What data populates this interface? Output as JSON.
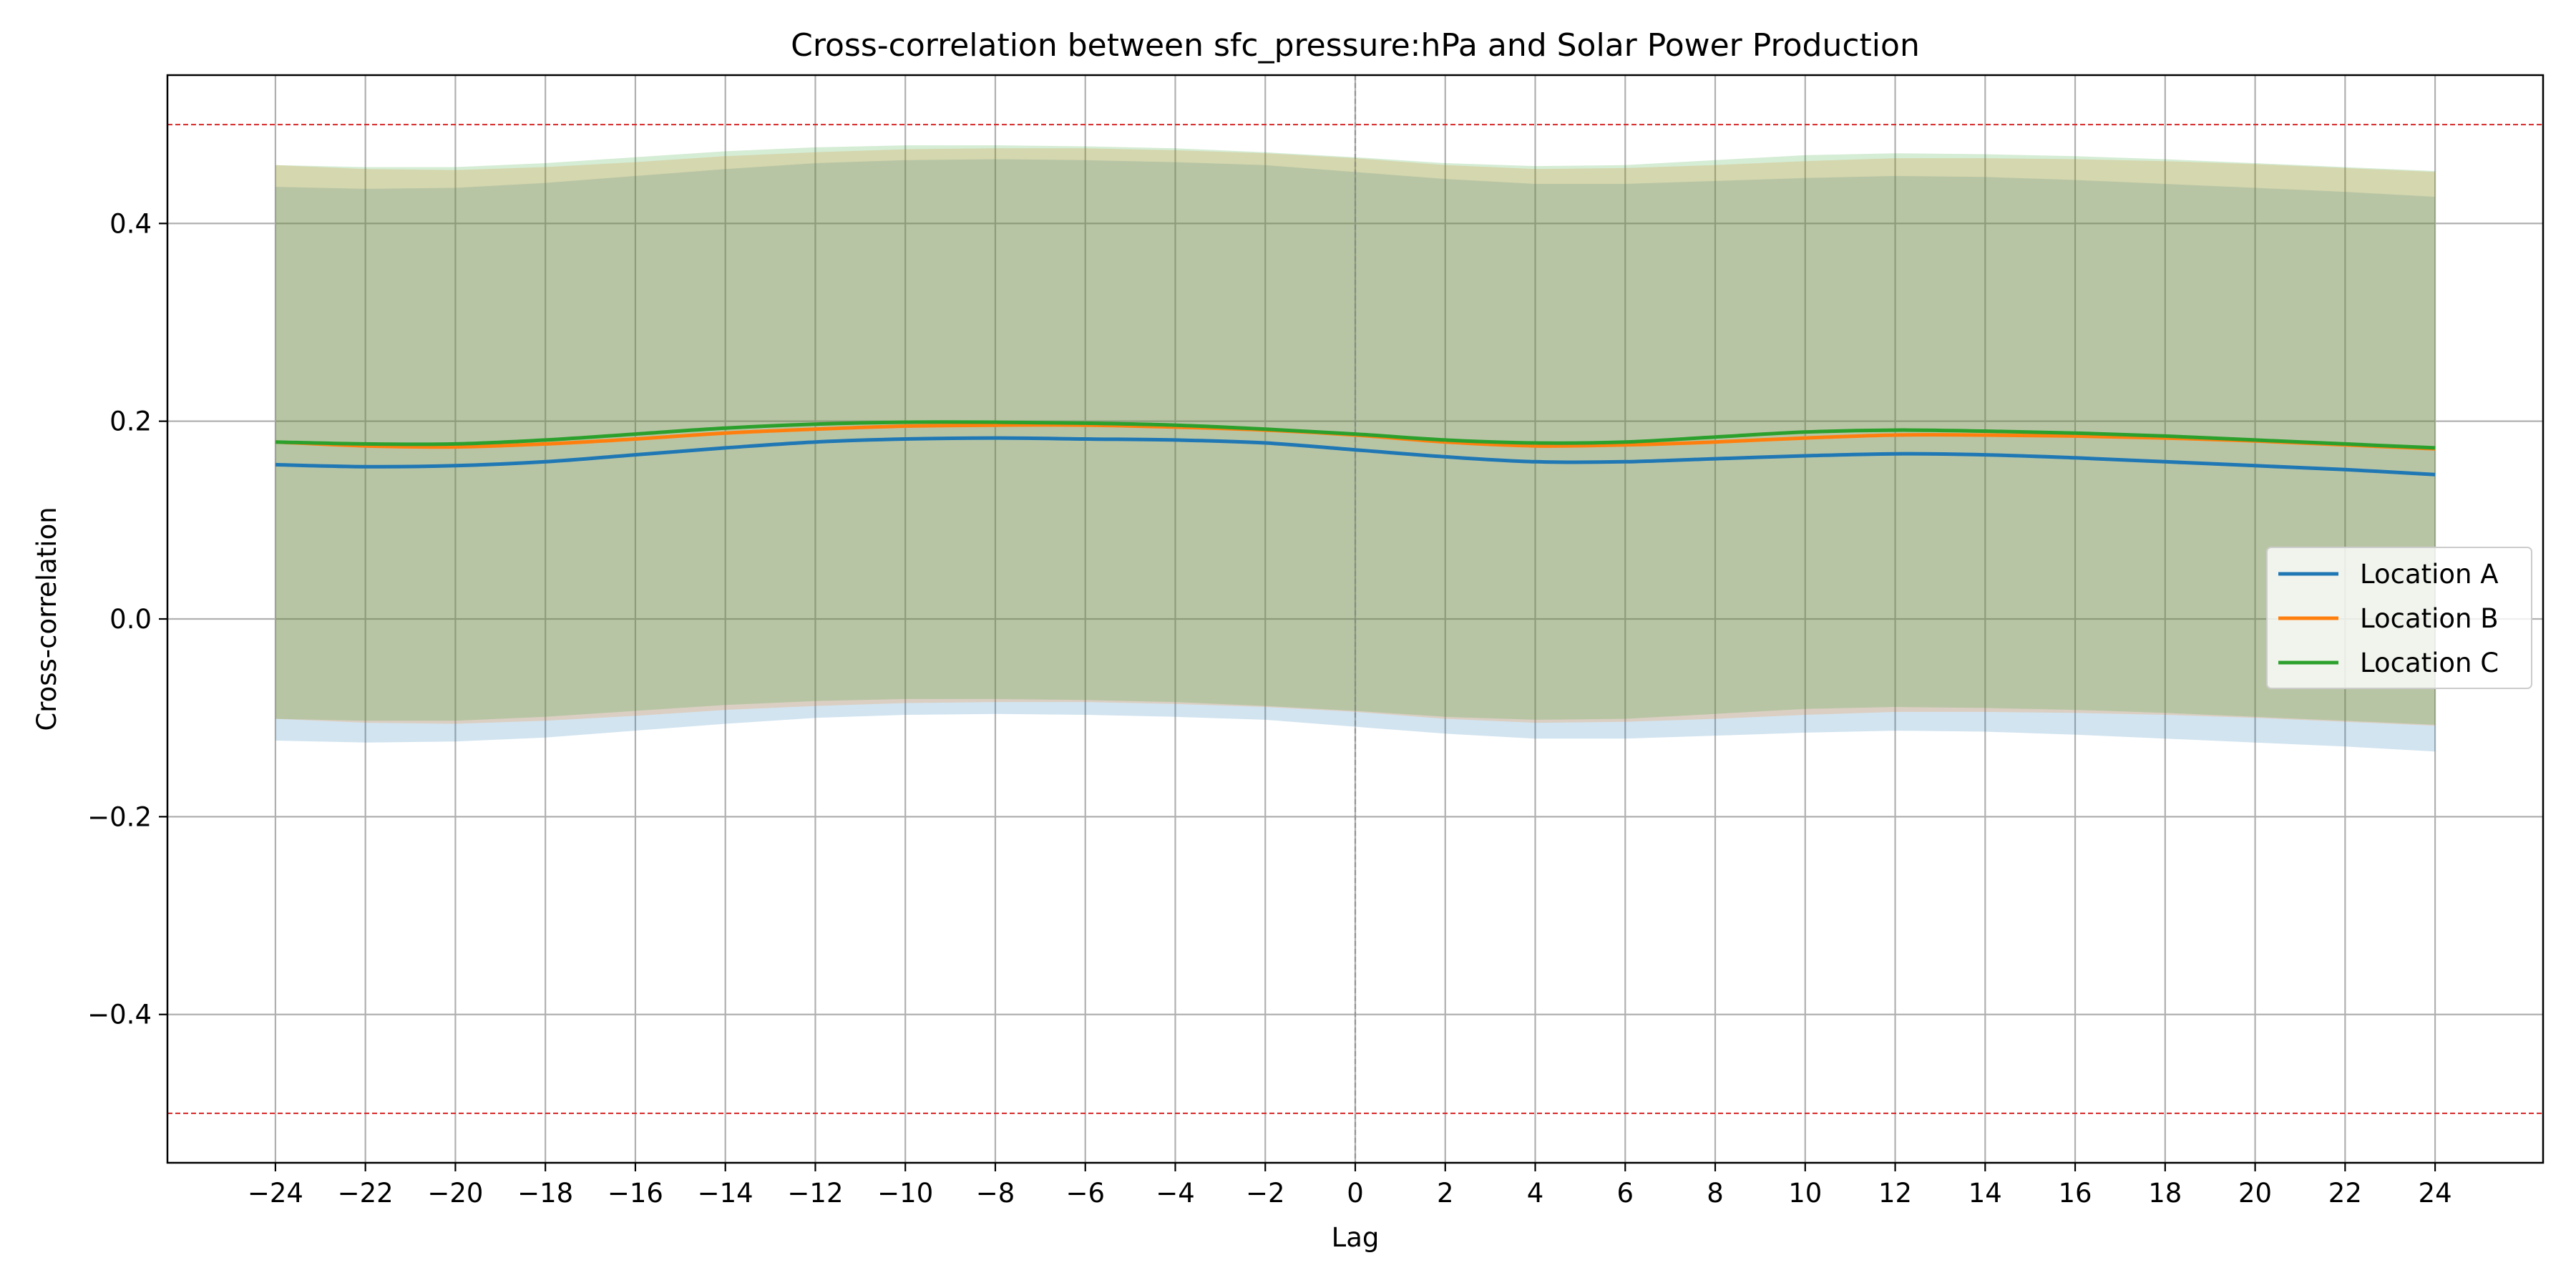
{
  "chart_data": {
    "type": "line",
    "title": "Cross-correlation between sfc_pressure:hPa and Solar Power Production",
    "xlabel": "Lag",
    "ylabel": "Cross-correlation",
    "xlim": [
      -26.4,
      26.4
    ],
    "ylim": [
      -0.55,
      0.55
    ],
    "x_ticks": [
      -24,
      -22,
      -20,
      -18,
      -16,
      -14,
      -12,
      -10,
      -8,
      -6,
      -4,
      -2,
      0,
      2,
      4,
      6,
      8,
      10,
      12,
      14,
      16,
      18,
      20,
      22,
      24
    ],
    "x_tick_labels": [
      "−24",
      "−22",
      "−20",
      "−18",
      "−16",
      "−14",
      "−12",
      "−10",
      "−8",
      "−6",
      "−4",
      "−2",
      "0",
      "2",
      "4",
      "6",
      "8",
      "10",
      "12",
      "14",
      "16",
      "18",
      "20",
      "22",
      "24"
    ],
    "y_ticks": [
      -0.4,
      -0.2,
      0.0,
      0.2,
      0.4
    ],
    "y_tick_labels": [
      "−0.4",
      "−0.2",
      "0.0",
      "0.2",
      "0.4"
    ],
    "grid": true,
    "legend_position": "center-right",
    "reference_lines": [
      {
        "y": 0.5,
        "color": "#d62728",
        "style": "dashed"
      },
      {
        "y": -0.5,
        "color": "#d62728",
        "style": "dashed"
      },
      {
        "x": 0,
        "color": "#808080",
        "style": "dashed"
      }
    ],
    "x": [
      -24,
      -22,
      -20,
      -18,
      -16,
      -14,
      -12,
      -10,
      -8,
      -6,
      -4,
      -2,
      0,
      2,
      4,
      6,
      8,
      10,
      12,
      14,
      16,
      18,
      20,
      22,
      24
    ],
    "series": [
      {
        "name": "Location A",
        "color": "#1f77b4",
        "values": [
          0.156,
          0.154,
          0.155,
          0.159,
          0.166,
          0.173,
          0.179,
          0.182,
          0.183,
          0.182,
          0.181,
          0.178,
          0.171,
          0.164,
          0.159,
          0.159,
          0.162,
          0.165,
          0.167,
          0.166,
          0.163,
          0.159,
          0.155,
          0.151,
          0.146
        ],
        "band_upper": [
          0.437,
          0.435,
          0.436,
          0.441,
          0.448,
          0.455,
          0.461,
          0.464,
          0.465,
          0.464,
          0.462,
          0.459,
          0.452,
          0.445,
          0.44,
          0.44,
          0.443,
          0.446,
          0.448,
          0.447,
          0.444,
          0.44,
          0.436,
          0.432,
          0.427
        ],
        "band_lower": [
          -0.123,
          -0.125,
          -0.124,
          -0.12,
          -0.113,
          -0.106,
          -0.1,
          -0.097,
          -0.096,
          -0.097,
          -0.099,
          -0.102,
          -0.109,
          -0.116,
          -0.121,
          -0.121,
          -0.118,
          -0.115,
          -0.113,
          -0.114,
          -0.117,
          -0.121,
          -0.125,
          -0.129,
          -0.134
        ]
      },
      {
        "name": "Location B",
        "color": "#ff7f0e",
        "values": [
          0.179,
          0.175,
          0.174,
          0.177,
          0.182,
          0.188,
          0.192,
          0.195,
          0.196,
          0.196,
          0.194,
          0.191,
          0.186,
          0.179,
          0.175,
          0.176,
          0.179,
          0.183,
          0.186,
          0.186,
          0.185,
          0.183,
          0.18,
          0.176,
          0.172
        ],
        "band_upper": [
          0.459,
          0.455,
          0.454,
          0.457,
          0.462,
          0.468,
          0.472,
          0.475,
          0.476,
          0.476,
          0.474,
          0.471,
          0.466,
          0.459,
          0.455,
          0.456,
          0.459,
          0.463,
          0.466,
          0.466,
          0.465,
          0.463,
          0.46,
          0.456,
          0.452
        ],
        "band_lower": [
          -0.101,
          -0.105,
          -0.106,
          -0.103,
          -0.098,
          -0.092,
          -0.088,
          -0.085,
          -0.084,
          -0.084,
          -0.086,
          -0.089,
          -0.094,
          -0.101,
          -0.105,
          -0.104,
          -0.101,
          -0.097,
          -0.094,
          -0.094,
          -0.095,
          -0.097,
          -0.1,
          -0.104,
          -0.108
        ]
      },
      {
        "name": "Location C",
        "color": "#2ca02c",
        "values": [
          0.179,
          0.177,
          0.177,
          0.181,
          0.187,
          0.193,
          0.197,
          0.199,
          0.199,
          0.198,
          0.196,
          0.192,
          0.187,
          0.181,
          0.178,
          0.179,
          0.184,
          0.189,
          0.191,
          0.19,
          0.188,
          0.185,
          0.181,
          0.177,
          0.173
        ],
        "band_upper": [
          0.459,
          0.457,
          0.457,
          0.461,
          0.467,
          0.473,
          0.477,
          0.479,
          0.479,
          0.478,
          0.476,
          0.472,
          0.467,
          0.461,
          0.458,
          0.459,
          0.464,
          0.469,
          0.471,
          0.47,
          0.468,
          0.465,
          0.461,
          0.457,
          0.453
        ],
        "band_lower": [
          -0.101,
          -0.103,
          -0.103,
          -0.099,
          -0.093,
          -0.087,
          -0.083,
          -0.081,
          -0.081,
          -0.082,
          -0.084,
          -0.088,
          -0.093,
          -0.099,
          -0.102,
          -0.101,
          -0.096,
          -0.091,
          -0.089,
          -0.09,
          -0.092,
          -0.095,
          -0.099,
          -0.103,
          -0.107
        ]
      }
    ]
  }
}
